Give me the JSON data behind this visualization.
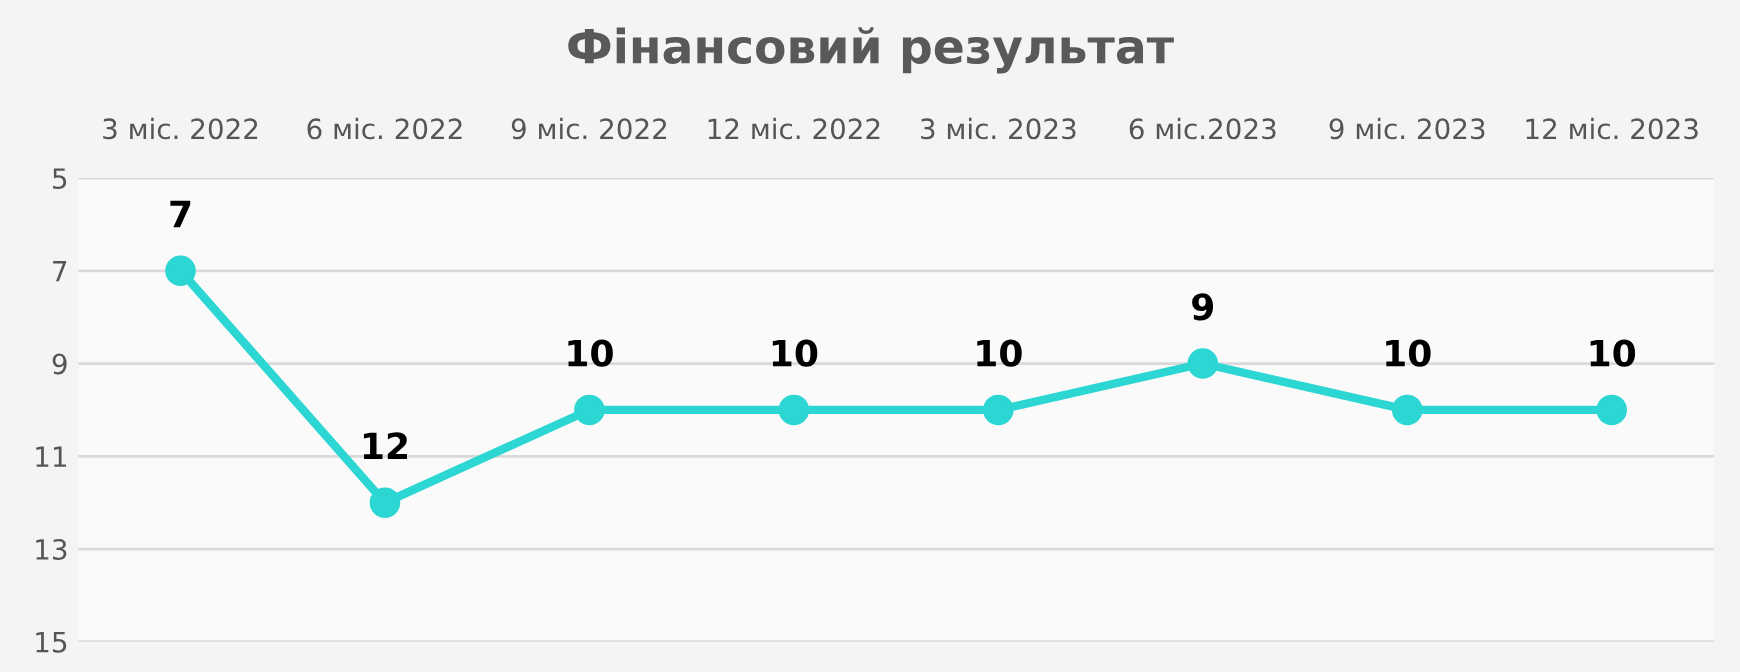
{
  "chart_data": {
    "type": "line",
    "title": "Фінансовий результат",
    "categories": [
      "3 міс. 2022",
      "6 міс. 2022",
      "9 міс. 2022",
      "12 міс. 2022",
      "3 міс. 2023",
      "6 міс.2023",
      "9 міс. 2023",
      "12 міс. 2023"
    ],
    "series": [
      {
        "color": "#2cd6d3",
        "values": [
          7,
          12,
          10,
          10,
          10,
          9,
          10,
          10
        ]
      }
    ],
    "ylim": [
      15,
      5
    ],
    "yticks": [
      5,
      7,
      9,
      11,
      13,
      15
    ],
    "grid": "y",
    "marker": "circle",
    "line_style": "solid",
    "data_labels": true
  }
}
